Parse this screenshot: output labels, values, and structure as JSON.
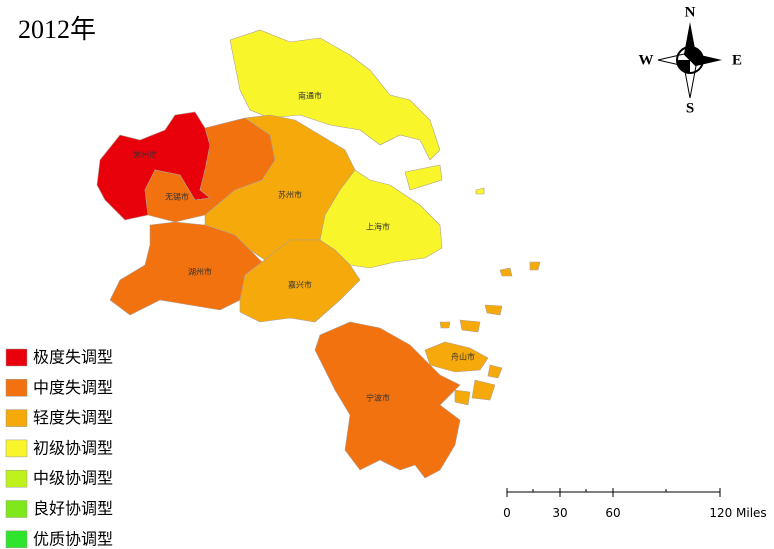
{
  "title": "2012年",
  "regions": [
    {
      "label": "南通市",
      "class": 3
    },
    {
      "label": "常州市",
      "class": 0
    },
    {
      "label": "无锡市",
      "class": 1
    },
    {
      "label": "苏州市",
      "class": 2
    },
    {
      "label": "上海市",
      "class": 3
    },
    {
      "label": "湖州市",
      "class": 1
    },
    {
      "label": "嘉兴市",
      "class": 2
    },
    {
      "label": "宁波市",
      "class": 1
    },
    {
      "label": "舟山市",
      "class": 2
    }
  ],
  "legend": [
    {
      "label": "极度失调型",
      "color": "#e8000b"
    },
    {
      "label": "中度失调型",
      "color": "#f2720f"
    },
    {
      "label": "轻度失调型",
      "color": "#f5a90a"
    },
    {
      "label": "初级协调型",
      "color": "#f8f52a"
    },
    {
      "label": "中级协调型",
      "color": "#bff21c"
    },
    {
      "label": "良好协调型",
      "color": "#7ee81b"
    },
    {
      "label": "优质协调型",
      "color": "#2fe52b"
    }
  ],
  "compass": {
    "north": "N",
    "south": "S",
    "east": "E",
    "west": "W"
  },
  "scale_bar": {
    "labels": [
      "0",
      "30",
      "60",
      "120 Miles"
    ]
  }
}
